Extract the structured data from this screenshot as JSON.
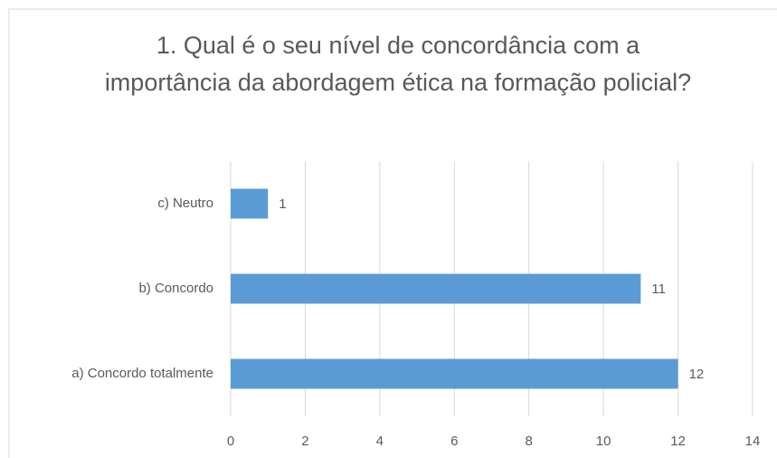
{
  "chart_data": {
    "type": "bar",
    "orientation": "horizontal",
    "title": "1. Qual é o seu nível de concordância com a importância da abordagem ética na formação policial?",
    "categories": [
      "c) Neutro",
      "b) Concordo",
      "a) Concordo totalmente"
    ],
    "values": [
      1,
      11,
      12
    ],
    "color": "#5b9bd5",
    "xlim": [
      0,
      14
    ],
    "xticks": [
      0,
      2,
      4,
      6,
      8,
      10,
      12,
      14
    ],
    "grid": true
  }
}
